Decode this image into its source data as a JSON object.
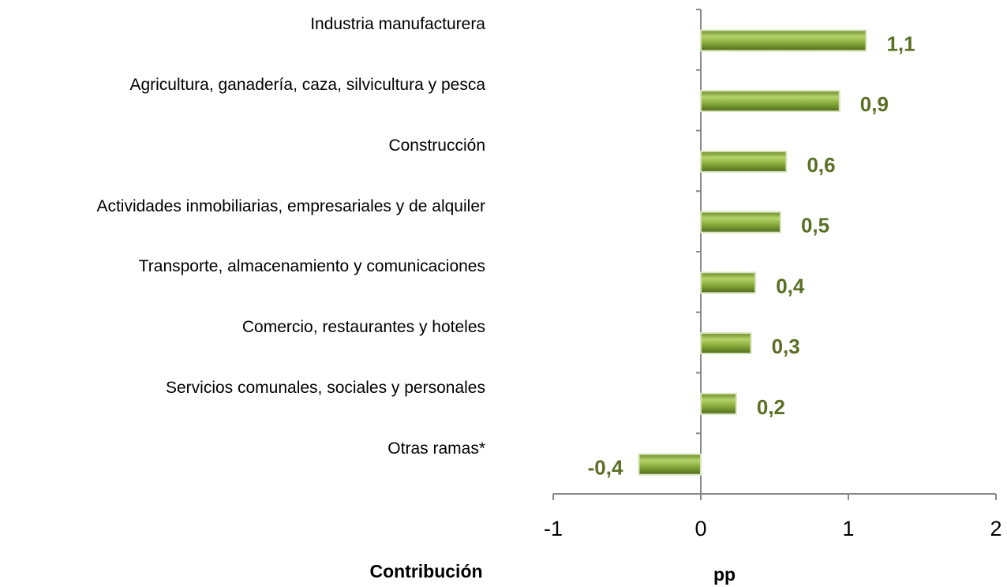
{
  "chart_data": {
    "type": "hbar",
    "categories": [
      "Industria manufacturera",
      "Agricultura, ganadería, caza, silvicultura y pesca",
      "Construcción",
      "Actividades inmobiliarias, empresariales y de alquiler",
      "Transporte, almacenamiento y comunicaciones",
      "Comercio, restaurantes y hoteles",
      "Servicios comunales, sociales y personales",
      "Otras ramas*"
    ],
    "values": [
      1.12,
      0.94,
      0.58,
      0.54,
      0.37,
      0.34,
      0.24,
      -0.42
    ],
    "value_labels": [
      "1,1",
      "0,9",
      "0,6",
      "0,5",
      "0,4",
      "0,3",
      "0,2",
      "-0,4"
    ],
    "color": "#7f9f35",
    "label_color": "#5b6f25",
    "xlim": [
      -1,
      2
    ],
    "xticks": [
      -1,
      0,
      1,
      2
    ],
    "x_label": "pp",
    "note": "Contribución"
  }
}
